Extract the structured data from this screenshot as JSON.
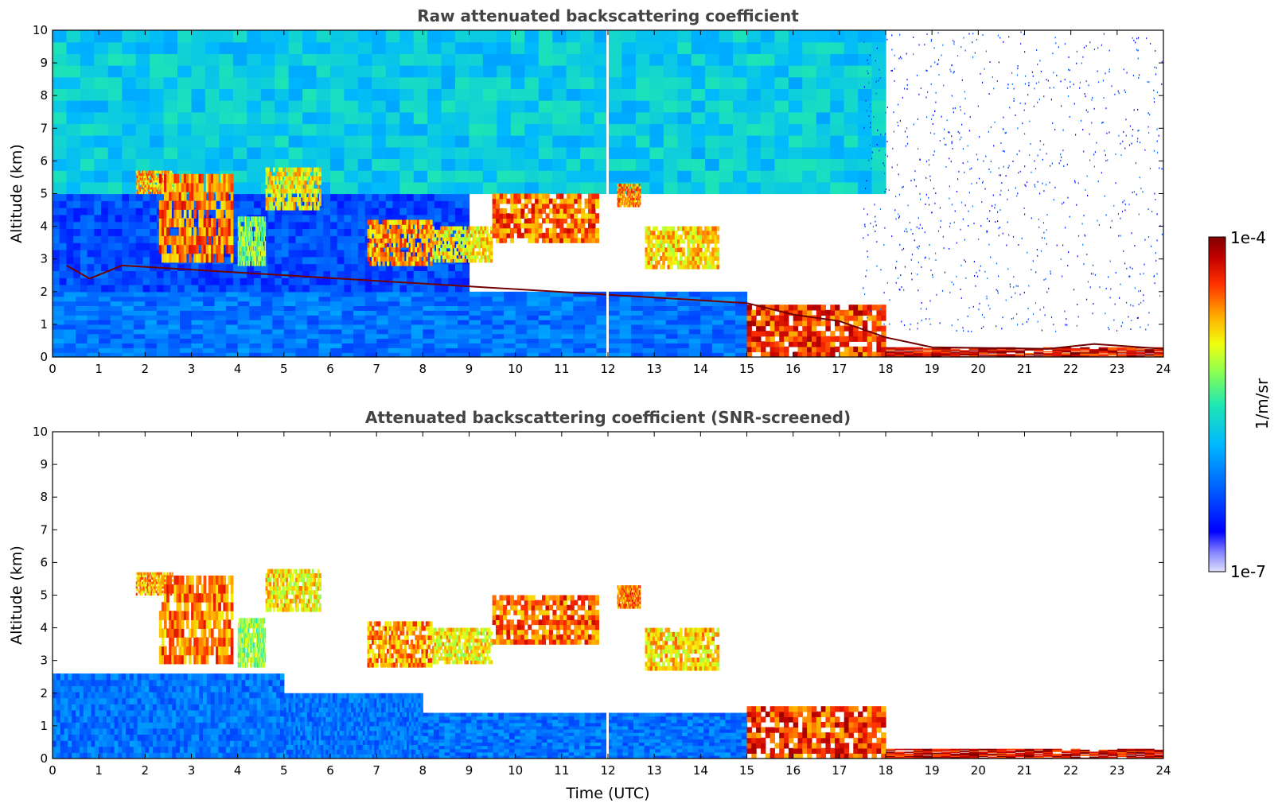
{
  "chart_data": [
    {
      "type": "heatmap",
      "title": "Raw attenuated backscattering coefficient",
      "xlabel": "",
      "ylabel": "Altitude (km)",
      "xlim": [
        0,
        24
      ],
      "ylim": [
        0,
        10
      ],
      "xticks": [
        "0",
        "1",
        "2",
        "3",
        "4",
        "5",
        "6",
        "7",
        "8",
        "9",
        "10",
        "11",
        "12",
        "13",
        "14",
        "15",
        "16",
        "17",
        "18",
        "19",
        "20",
        "21",
        "22",
        "23",
        "24"
      ],
      "yticks": [
        "0",
        "1",
        "2",
        "3",
        "4",
        "5",
        "6",
        "7",
        "8",
        "9",
        "10"
      ],
      "colorscale": [
        "#d8d8f8",
        "#0000ff",
        "#0050ff",
        "#00aaff",
        "#20e0c0",
        "#80ff60",
        "#e8ff20",
        "#ffb000",
        "#ff4000",
        "#c00000",
        "#800000"
      ],
      "background_regions": [
        {
          "t0": 0,
          "t1": 15,
          "z0": 0,
          "z1": 2,
          "level": 0.28
        },
        {
          "t0": 0,
          "t1": 9,
          "z0": 2,
          "z1": 5,
          "level": 0.22
        },
        {
          "t0": 0,
          "t1": 18,
          "z0": 5,
          "z1": 10,
          "level": 0.42
        }
      ],
      "features": [
        {
          "t0": 1.8,
          "t1": 2.6,
          "z0": 5.0,
          "z1": 5.7,
          "level": 0.75
        },
        {
          "t0": 2.3,
          "t1": 3.9,
          "z0": 2.9,
          "z1": 5.6,
          "level": 0.8
        },
        {
          "t0": 4.0,
          "t1": 4.6,
          "z0": 2.8,
          "z1": 4.3,
          "level": 0.6
        },
        {
          "t0": 4.6,
          "t1": 5.8,
          "z0": 4.5,
          "z1": 5.8,
          "level": 0.7
        },
        {
          "t0": 6.8,
          "t1": 8.2,
          "z0": 2.8,
          "z1": 4.2,
          "level": 0.78
        },
        {
          "t0": 8.2,
          "t1": 9.5,
          "z0": 2.9,
          "z1": 4.0,
          "level": 0.7
        },
        {
          "t0": 9.5,
          "t1": 11.8,
          "z0": 3.5,
          "z1": 5.0,
          "level": 0.82
        },
        {
          "t0": 12.2,
          "t1": 12.7,
          "z0": 4.6,
          "z1": 5.3,
          "level": 0.8
        },
        {
          "t0": 12.8,
          "t1": 14.4,
          "z0": 2.7,
          "z1": 4.0,
          "level": 0.72
        },
        {
          "t0": 15.0,
          "t1": 18.0,
          "z0": 0.0,
          "z1": 1.6,
          "level": 0.86
        },
        {
          "t0": 18.0,
          "t1": 24.0,
          "z0": 0.0,
          "z1": 0.3,
          "level": 0.92
        }
      ],
      "layer_tops": [
        {
          "t": 0.3,
          "z": 2.8
        },
        {
          "t": 0.8,
          "z": 2.4
        },
        {
          "t": 1.5,
          "z": 2.8
        },
        {
          "t": 15.0,
          "z": 1.65
        },
        {
          "t": 16.0,
          "z": 1.3
        },
        {
          "t": 17.0,
          "z": 1.1
        },
        {
          "t": 18.0,
          "z": 0.6
        },
        {
          "t": 19.0,
          "z": 0.3
        },
        {
          "t": 21.5,
          "z": 0.25
        },
        {
          "t": 22.5,
          "z": 0.4
        },
        {
          "t": 24.0,
          "z": 0.25
        }
      ]
    },
    {
      "type": "heatmap",
      "title": "Attenuated backscattering coefficient (SNR-screened)",
      "xlabel": "Time (UTC)",
      "ylabel": "Altitude (km)",
      "xlim": [
        0,
        24
      ],
      "ylim": [
        0,
        10
      ],
      "xticks": [
        "0",
        "1",
        "2",
        "3",
        "4",
        "5",
        "6",
        "7",
        "8",
        "9",
        "10",
        "11",
        "12",
        "13",
        "14",
        "15",
        "16",
        "17",
        "18",
        "19",
        "20",
        "21",
        "22",
        "23",
        "24"
      ],
      "yticks": [
        "0",
        "1",
        "2",
        "3",
        "4",
        "5",
        "6",
        "7",
        "8",
        "9",
        "10"
      ],
      "background_regions": [
        {
          "t0": 0,
          "t1": 5,
          "z0": 0,
          "z1": 2.6,
          "level": 0.28
        },
        {
          "t0": 5,
          "t1": 8,
          "z0": 0,
          "z1": 2.0,
          "level": 0.28
        },
        {
          "t0": 8,
          "t1": 15,
          "z0": 0,
          "z1": 1.4,
          "level": 0.28
        }
      ],
      "features": [
        {
          "t0": 1.8,
          "t1": 2.6,
          "z0": 5.0,
          "z1": 5.7,
          "level": 0.75
        },
        {
          "t0": 2.3,
          "t1": 3.9,
          "z0": 2.9,
          "z1": 5.6,
          "level": 0.8
        },
        {
          "t0": 4.0,
          "t1": 4.6,
          "z0": 2.8,
          "z1": 4.3,
          "level": 0.6
        },
        {
          "t0": 4.6,
          "t1": 5.8,
          "z0": 4.5,
          "z1": 5.8,
          "level": 0.7
        },
        {
          "t0": 6.8,
          "t1": 8.2,
          "z0": 2.8,
          "z1": 4.2,
          "level": 0.78
        },
        {
          "t0": 8.2,
          "t1": 9.5,
          "z0": 2.9,
          "z1": 4.0,
          "level": 0.7
        },
        {
          "t0": 9.5,
          "t1": 11.8,
          "z0": 3.5,
          "z1": 5.0,
          "level": 0.82
        },
        {
          "t0": 12.2,
          "t1": 12.7,
          "z0": 4.6,
          "z1": 5.3,
          "level": 0.8
        },
        {
          "t0": 12.8,
          "t1": 14.4,
          "z0": 2.7,
          "z1": 4.0,
          "level": 0.72
        },
        {
          "t0": 15.0,
          "t1": 18.0,
          "z0": 0.0,
          "z1": 1.6,
          "level": 0.86
        },
        {
          "t0": 18.0,
          "t1": 24.0,
          "z0": 0.0,
          "z1": 0.3,
          "level": 0.92
        }
      ]
    }
  ],
  "colorbar": {
    "label": "1/m/sr",
    "max_label": "1e-4",
    "min_label": "1e-7"
  }
}
